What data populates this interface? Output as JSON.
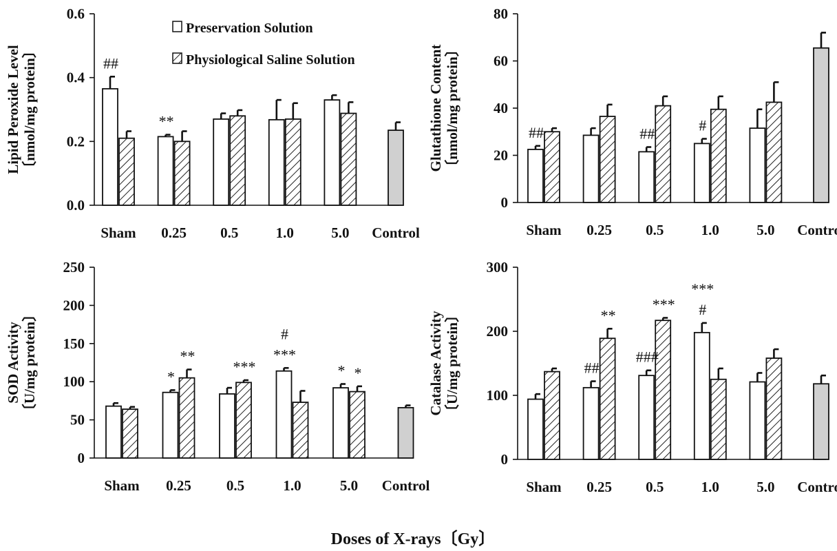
{
  "figure": {
    "x_title": "Doses of X-rays〔Gy〕",
    "legend": [
      {
        "label": "Preservation Solution",
        "fill": "#ffffff"
      },
      {
        "label": "Physiological Saline Solution",
        "fill": "hatch"
      }
    ]
  },
  "colors": {
    "bar_stroke": "#111111",
    "control_fill": "#d0d0d0",
    "hatch": "#222222"
  },
  "chart_data": [
    {
      "type": "bar",
      "ylabel_line1": "Lipid Peroxide Level",
      "ylabel_line2": "〔nmol/mg protein〕",
      "ylim": [
        0,
        0.6
      ],
      "yticks": [
        "0.0",
        "0.2",
        "0.4",
        "0.6"
      ],
      "categories": [
        "Sham",
        "0.25",
        "0.5",
        "1.0",
        "5.0",
        "Control"
      ],
      "series": [
        {
          "name": "Preservation Solution",
          "values": [
            0.365,
            0.215,
            0.27,
            0.268,
            0.33,
            null
          ],
          "errors": [
            0.038,
            0.006,
            0.018,
            0.062,
            0.015,
            null
          ]
        },
        {
          "name": "Physiological Saline Solution",
          "values": [
            0.21,
            0.2,
            0.28,
            0.27,
            0.288,
            null
          ],
          "errors": [
            0.022,
            0.032,
            0.018,
            0.05,
            0.035,
            null
          ]
        },
        {
          "name": "Control",
          "values": [
            null,
            null,
            null,
            null,
            null,
            0.235
          ],
          "errors": [
            null,
            null,
            null,
            null,
            null,
            0.025
          ]
        }
      ],
      "annotations": [
        {
          "category": 0,
          "bar": 0,
          "text": "##"
        },
        {
          "category": 1,
          "bar": 0,
          "text": "**"
        }
      ]
    },
    {
      "type": "bar",
      "ylabel_line1": "Glutathione Content",
      "ylabel_line2": "〔nmol/mg protein〕",
      "ylim": [
        0,
        80
      ],
      "yticks": [
        "0",
        "20",
        "40",
        "60",
        "80"
      ],
      "categories": [
        "Sham",
        "0.25",
        "0.5",
        "1.0",
        "5.0",
        "Control"
      ],
      "series": [
        {
          "name": "Preservation Solution",
          "values": [
            22.5,
            28.5,
            21.5,
            25,
            31.5,
            null
          ],
          "errors": [
            1.5,
            3,
            2,
            2,
            8,
            null
          ]
        },
        {
          "name": "Physiological Saline Solution",
          "values": [
            30,
            36.5,
            41,
            39.5,
            42.5,
            null
          ],
          "errors": [
            1.5,
            5,
            4,
            5.5,
            8.5,
            null
          ]
        },
        {
          "name": "Control",
          "values": [
            null,
            null,
            null,
            null,
            null,
            65.5
          ],
          "errors": [
            null,
            null,
            null,
            null,
            null,
            6.5
          ]
        }
      ],
      "annotations": [
        {
          "category": 0,
          "bar": 0,
          "text": "##"
        },
        {
          "category": 2,
          "bar": 0,
          "text": "##"
        },
        {
          "category": 3,
          "bar": 0,
          "text": "#"
        }
      ]
    },
    {
      "type": "bar",
      "ylabel_line1": "SOD Activity",
      "ylabel_line2": "〔U/mg protein〕",
      "ylim": [
        0,
        250
      ],
      "yticks": [
        "0",
        "50",
        "100",
        "150",
        "200",
        "250"
      ],
      "categories": [
        "Sham",
        "0.25",
        "0.5",
        "1.0",
        "5.0",
        "Control"
      ],
      "series": [
        {
          "name": "Preservation Solution",
          "values": [
            68,
            86,
            84,
            114,
            92,
            null
          ],
          "errors": [
            4,
            3,
            8,
            4,
            5,
            null
          ]
        },
        {
          "name": "Physiological Saline Solution",
          "values": [
            64,
            105,
            99,
            73,
            87,
            null
          ],
          "errors": [
            3,
            11,
            3,
            15,
            7,
            null
          ]
        },
        {
          "name": "Control",
          "values": [
            null,
            null,
            null,
            null,
            null,
            66
          ],
          "errors": [
            null,
            null,
            null,
            null,
            null,
            3
          ]
        }
      ],
      "annotations": [
        {
          "category": 1,
          "bar": 0,
          "text": "*"
        },
        {
          "category": 1,
          "bar": 1,
          "text": "**"
        },
        {
          "category": 2,
          "bar": 1,
          "text": "***"
        },
        {
          "category": 3,
          "bar": 0,
          "text": "***"
        },
        {
          "category": 3,
          "bar": 0,
          "text": "#",
          "row": 2
        },
        {
          "category": 4,
          "bar": 0,
          "text": "*"
        },
        {
          "category": 4,
          "bar": 1,
          "text": "*"
        }
      ]
    },
    {
      "type": "bar",
      "ylabel_line1": "Catalase Activity",
      "ylabel_line2": "〔U/mg protein〕",
      "ylim": [
        0,
        300
      ],
      "yticks": [
        "0",
        "100",
        "200",
        "300"
      ],
      "categories": [
        "Sham",
        "0.25",
        "0.5",
        "1.0",
        "5.0",
        "Control"
      ],
      "series": [
        {
          "name": "Preservation Solution",
          "values": [
            94,
            112,
            131,
            198,
            121,
            null
          ],
          "errors": [
            8,
            10,
            8,
            15,
            14,
            null
          ]
        },
        {
          "name": "Physiological Saline Solution",
          "values": [
            137,
            189,
            217,
            125,
            158,
            null
          ],
          "errors": [
            5,
            15,
            4,
            17,
            14,
            null
          ]
        },
        {
          "name": "Control",
          "values": [
            null,
            null,
            null,
            null,
            null,
            118
          ],
          "errors": [
            null,
            null,
            null,
            null,
            null,
            13
          ]
        }
      ],
      "annotations": [
        {
          "category": 1,
          "bar": 0,
          "text": "##"
        },
        {
          "category": 1,
          "bar": 1,
          "text": "**"
        },
        {
          "category": 2,
          "bar": 0,
          "text": "###"
        },
        {
          "category": 2,
          "bar": 1,
          "text": "***"
        },
        {
          "category": 3,
          "bar": 0,
          "text": "#"
        },
        {
          "category": 3,
          "bar": 0,
          "text": "***",
          "row": 2
        }
      ]
    }
  ]
}
